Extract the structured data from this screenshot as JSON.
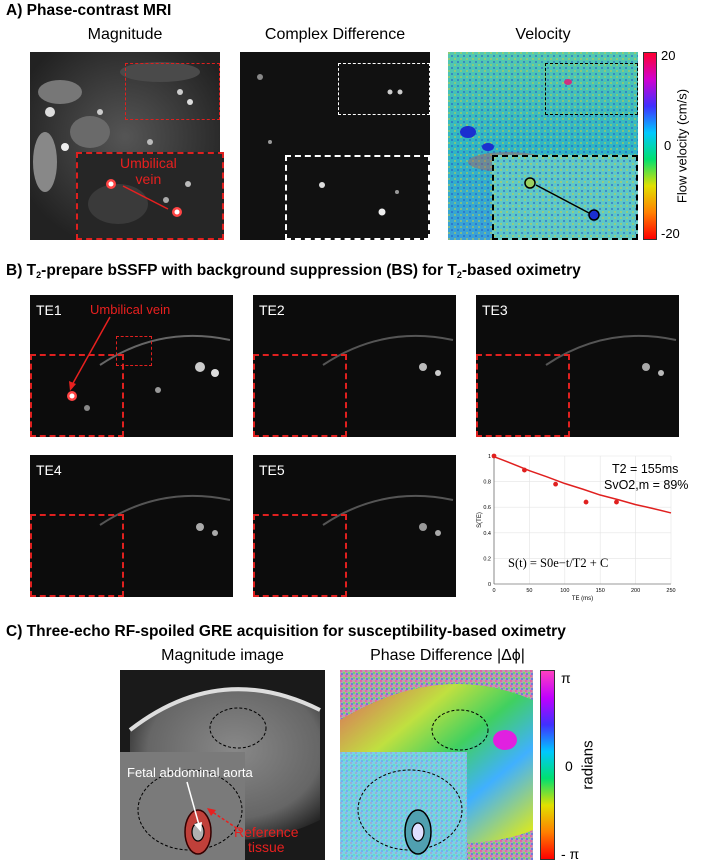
{
  "sectionA": {
    "title": "A) Phase-contrast MRI",
    "panels": [
      "Magnitude",
      "Complex Difference",
      "Velocity"
    ],
    "annotation": "Umbilical\nvein",
    "colorbar": {
      "label": "Flow velocity (cm/s)",
      "max": "20",
      "mid": "0",
      "min": "-20"
    }
  },
  "sectionB": {
    "title_pre": "B) T",
    "title_sub": "2",
    "title_post": "-prepare bSSFP with background suppression (BS) for T",
    "title_sub2": "2",
    "title_end": "-based oximetry",
    "annotation": "Umbilical vein",
    "te_labels": [
      "TE1",
      "TE2",
      "TE3",
      "TE4",
      "TE5"
    ],
    "fit": {
      "t2": "T2 = 155ms",
      "svo2": "SvO2,m = 89%",
      "equation": "S(t) = S0e−t/T2 + C"
    }
  },
  "chart_data": {
    "type": "scatter",
    "xlabel": "TE (ms)",
    "ylabel": "S(TE)",
    "xlim": [
      0,
      250
    ],
    "ylim": [
      0,
      1
    ],
    "xticks": [
      0,
      50,
      100,
      150,
      200,
      250
    ],
    "yticks": [
      0,
      0.2,
      0.4,
      0.6,
      0.8,
      1
    ],
    "grid": true,
    "points": {
      "x": [
        0,
        43,
        87,
        130,
        173
      ],
      "y": [
        1.0,
        0.89,
        0.78,
        0.64,
        0.64
      ]
    },
    "fit_curve": {
      "x": [
        0,
        50,
        100,
        150,
        200,
        250
      ],
      "y": [
        0.995,
        0.885,
        0.785,
        0.695,
        0.62,
        0.555
      ]
    },
    "colors": {
      "points": "#e0201f",
      "fit": "#e0201f"
    }
  },
  "sectionC": {
    "title": "C) Three-echo RF-spoiled GRE acquisition for susceptibility-based oximetry",
    "panels": [
      "Magnitude image",
      "Phase Difference |Δϕ|"
    ],
    "annotation_aorta": "Fetal abdominal aorta",
    "annotation_ref": "Reference\ntissue",
    "colorbar": {
      "label": "radians",
      "max": "π",
      "mid": "0",
      "min": "- π"
    }
  }
}
